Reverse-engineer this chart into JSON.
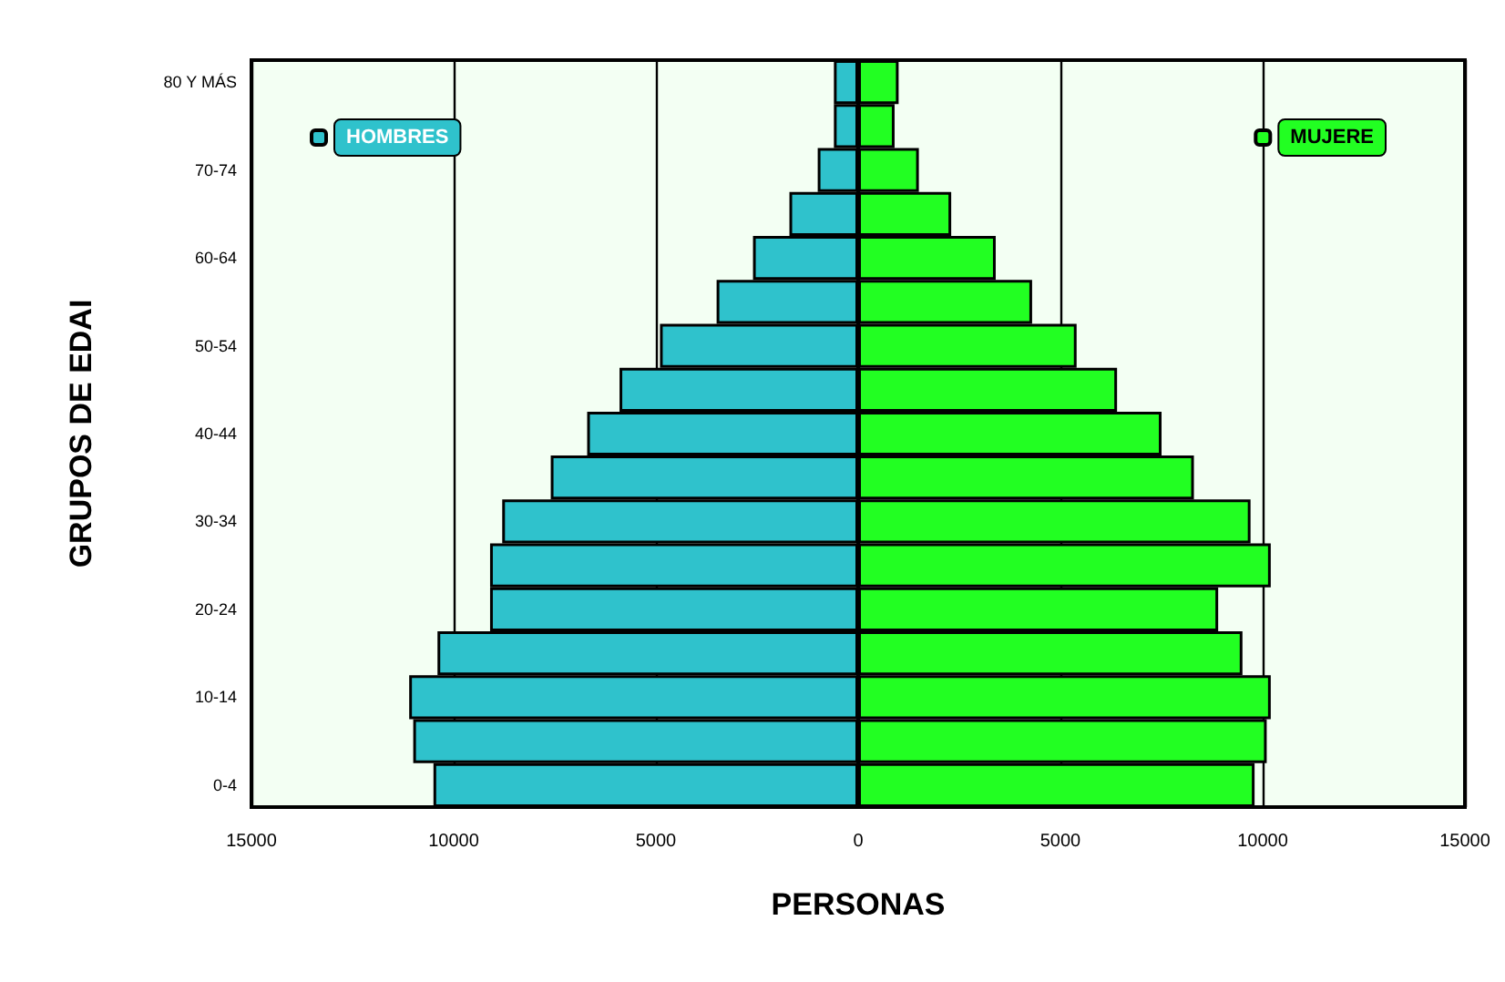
{
  "chart_data": {
    "type": "bar",
    "orientation": "horizontal",
    "xlabel": "PERSONAS",
    "ylabel": "GRUPOS DE EDAI",
    "categories": [
      "80 Y MÁS",
      null,
      "70-74",
      null,
      "60-64",
      null,
      "50-54",
      null,
      "40-44",
      null,
      "30-34",
      null,
      "20-24",
      null,
      "10-14",
      null,
      "0-4"
    ],
    "series": [
      {
        "name": "HOMBRES",
        "color": "#2fc2cc",
        "values": [
          -600,
          -600,
          -1000,
          -1700,
          -2600,
          -3500,
          -4900,
          -5900,
          -6700,
          -7600,
          -8800,
          -9100,
          -9100,
          -10400,
          -11100,
          -11000,
          -10500
        ]
      },
      {
        "name": "MUJERE",
        "color": "#22ff22",
        "values": [
          1000,
          900,
          1500,
          2300,
          3400,
          4300,
          5400,
          6400,
          7500,
          8300,
          9700,
          10200,
          8900,
          9500,
          10200,
          10100,
          9800
        ]
      }
    ],
    "xlim": [
      -15000,
      15000
    ],
    "xticks": [
      {
        "value": -15000,
        "label": "15000"
      },
      {
        "value": -10000,
        "label": "10000"
      },
      {
        "value": -5000,
        "label": "5000"
      },
      0,
      5000,
      10000,
      15000
    ],
    "grid": "x",
    "legend": "top",
    "stacked": true
  }
}
